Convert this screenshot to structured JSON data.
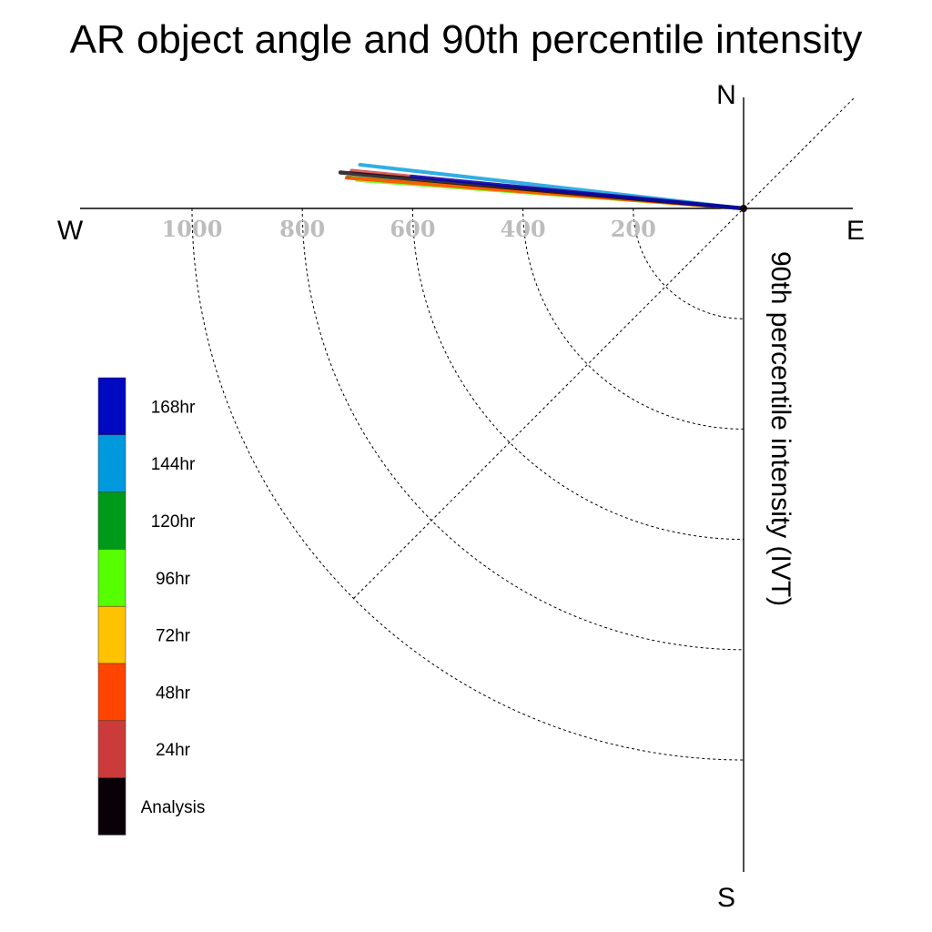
{
  "chart_data": {
    "type": "polar-line",
    "title": "AR object angle and 90th percentile intensity",
    "ylabel": "90th percentile intensity (IVT)",
    "compass": {
      "north": "N",
      "south": "S",
      "east": "E",
      "west": "W"
    },
    "radial_ticks": [
      {
        "value": 200,
        "label": "200"
      },
      {
        "value": 400,
        "label": "400"
      },
      {
        "value": 600,
        "label": "600"
      },
      {
        "value": 800,
        "label": "800"
      },
      {
        "value": 1000,
        "label": "1000"
      }
    ],
    "radial_max": 1200,
    "grid": true,
    "legend_position": "lower-left",
    "series": [
      {
        "name": "Analysis",
        "color": "#0a0008",
        "angle_deg": 174.9,
        "intensity": 734
      },
      {
        "name": "24hr",
        "color": "#cc3b3b",
        "angle_deg": 174.5,
        "intensity": 714
      },
      {
        "name": "48hr",
        "color": "#ff4400",
        "angle_deg": 175.6,
        "intensity": 722
      },
      {
        "name": "72hr",
        "color": "#ffc200",
        "angle_deg": 175.6,
        "intensity": 711
      },
      {
        "name": "96hr",
        "color": "#55ff00",
        "angle_deg": 175.8,
        "intensity": 703
      },
      {
        "name": "120hr",
        "color": "#009a1a",
        "angle_deg": 175.5,
        "intensity": 720
      },
      {
        "name": "144hr",
        "color": "#0099dd",
        "angle_deg": 173.5,
        "intensity": 700
      },
      {
        "name": "168hr",
        "color": "#0008c0",
        "angle_deg": 174.5,
        "intensity": 605
      }
    ]
  }
}
